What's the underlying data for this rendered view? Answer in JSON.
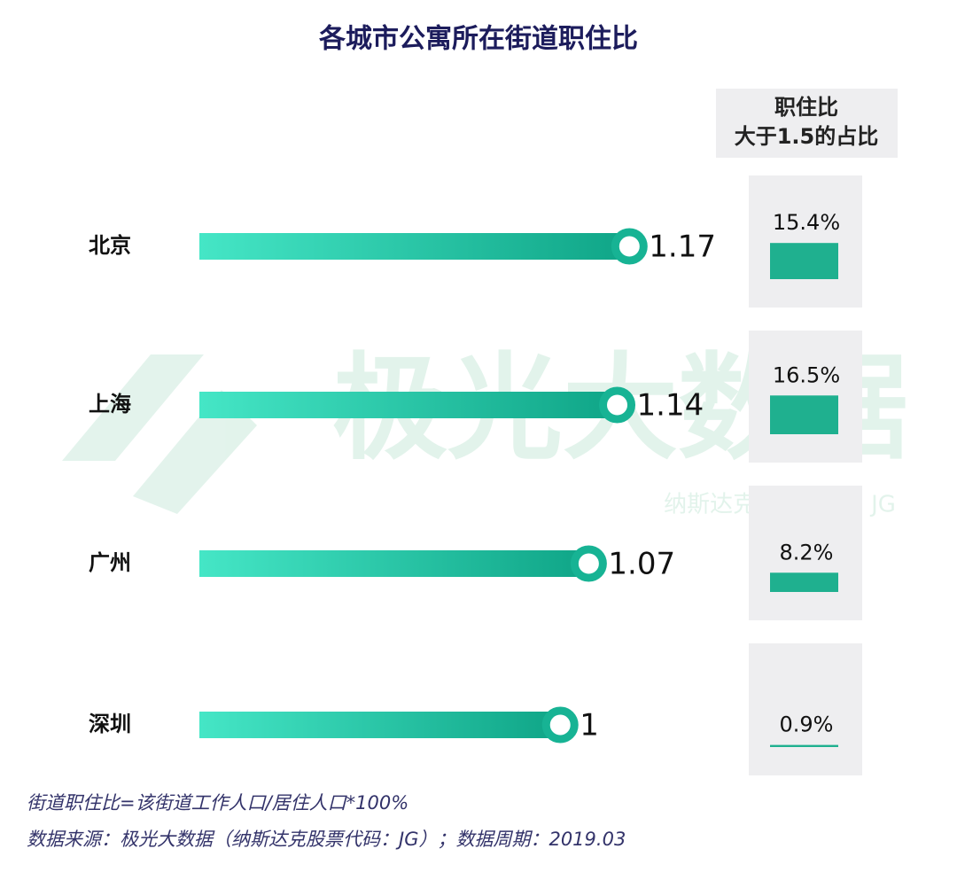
{
  "chart_data": [
    {
      "type": "lollipop",
      "title": "各城市公寓所在街道职住比",
      "categories": [
        "北京",
        "上海",
        "广州",
        "深圳"
      ],
      "values": [
        1.17,
        1.14,
        1.07,
        1
      ],
      "xlim": [
        0,
        1.3
      ],
      "color": "#17b394"
    },
    {
      "type": "column",
      "title": [
        "职住比",
        "大于1.5的占比"
      ],
      "values": [
        15.4,
        16.5,
        8.2,
        0.9
      ],
      "value_labels": [
        "15.4%",
        "16.5%",
        "8.2%",
        "0.9%"
      ],
      "ylim": [
        0,
        20
      ],
      "color": "#1fb08f"
    }
  ],
  "watermark": {
    "brand": "极光大数据",
    "ticker": "纳斯达克股票代码：JG"
  },
  "notes": [
    "街道职住比=该街道工作人口/居住人口*100%",
    "数据来源：极光大数据（纳斯达克股票代码：JG）；数据周期：2019.03"
  ]
}
